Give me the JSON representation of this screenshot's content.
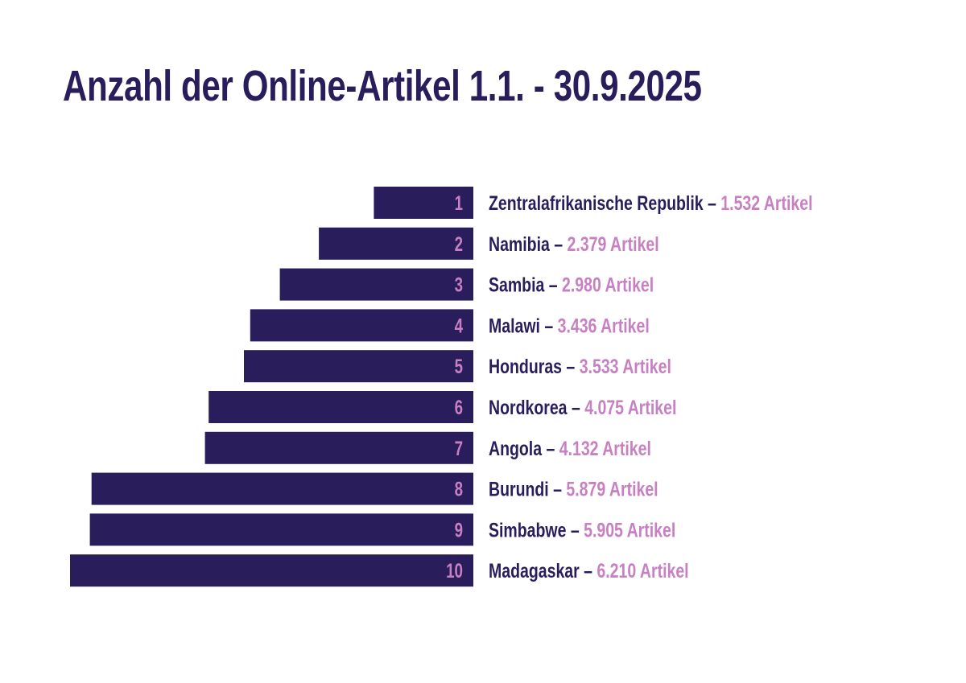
{
  "title": "Anzahl der Online-Artikel 1.1. - 30.9.2025",
  "colors": {
    "bar": "#2a1d5c",
    "title": "#2a1d5c",
    "country": "#2a1d5c",
    "accent": "#c780c2",
    "rank": "#c780c2"
  },
  "separator": "–",
  "unit": "Artikel",
  "chart_data": {
    "type": "bar",
    "orientation": "horizontal",
    "bar_direction": "right-to-left",
    "title": "Anzahl der Online-Artikel 1.1. - 30.9.2025",
    "ranks": [
      "1",
      "2",
      "3",
      "4",
      "5",
      "6",
      "7",
      "8",
      "9",
      "10"
    ],
    "categories": [
      "Zentralafrikanische Republik",
      "Namibia",
      "Sambia",
      "Malawi",
      "Honduras",
      "Nordkorea",
      "Angola",
      "Burundi",
      "Simbabwe",
      "Madagaskar"
    ],
    "values": [
      1532,
      2379,
      2980,
      3436,
      3533,
      4075,
      4132,
      5879,
      5905,
      6210
    ],
    "value_labels": [
      "1.532 Artikel",
      "2.379 Artikel",
      "2.980 Artikel",
      "3.436 Artikel",
      "3.533 Artikel",
      "4.075 Artikel",
      "4.132 Artikel",
      "5.879 Artikel",
      "5.905 Artikel",
      "6.210 Artikel"
    ],
    "xlabel": "",
    "ylabel": "",
    "grid": false,
    "legend": "none"
  }
}
